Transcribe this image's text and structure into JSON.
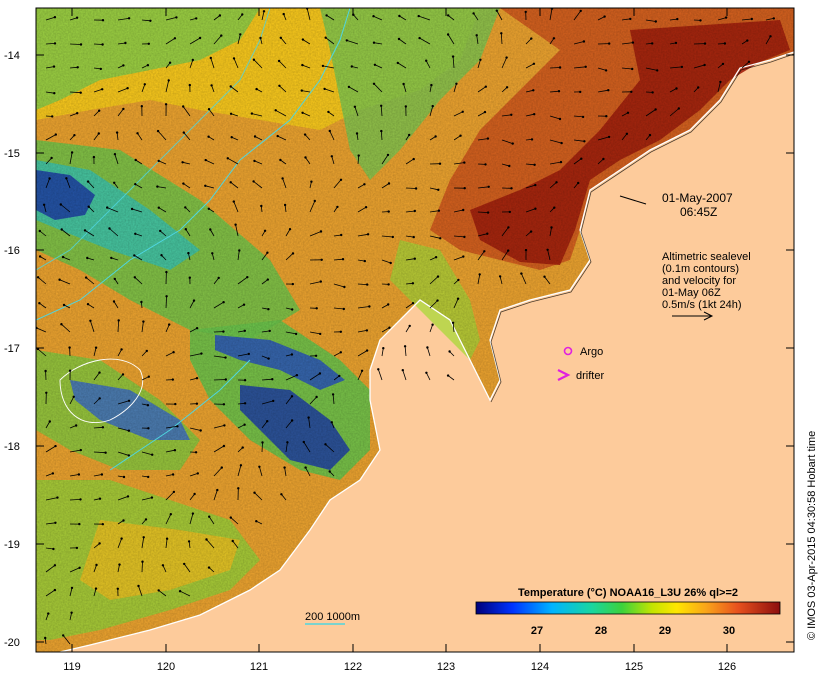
{
  "map": {
    "lat_ticks": [
      "-14",
      "-15",
      "-16",
      "-17",
      "-18",
      "-19",
      "-20"
    ],
    "lon_ticks": [
      "119",
      "120",
      "121",
      "122",
      "123",
      "124",
      "125",
      "126"
    ],
    "timestamp_line1": "01-May-2007",
    "timestamp_line2": "06:45Z",
    "altimetry_lines": [
      "Altimetric sealevel",
      "(0.1m contours)",
      "and velocity for",
      "01-May 06Z",
      "0.5m/s (1kt 24h)"
    ],
    "argo_label": "Argo",
    "drifter_label": "drifter",
    "isobath_label": "200  1000m",
    "colorbar_title": "Temperature (°C) NOAA16_L3U 26% ql>=2",
    "colorbar_ticks": [
      "27",
      "28",
      "29",
      "30"
    ],
    "copyright": "© IMOS 03-Apr-2015 04:30:58 Hobart time",
    "colors": {
      "land": "#fdcb9b",
      "ocean_warm": "#f2a022",
      "ocean_hot": "#b32b0e",
      "ocean_green": "#9ed23c",
      "ocean_cool": "#1e3fa8",
      "argo": "#e020e0",
      "drifter": "#e020e0",
      "isobath": "#4fd6e0"
    }
  }
}
